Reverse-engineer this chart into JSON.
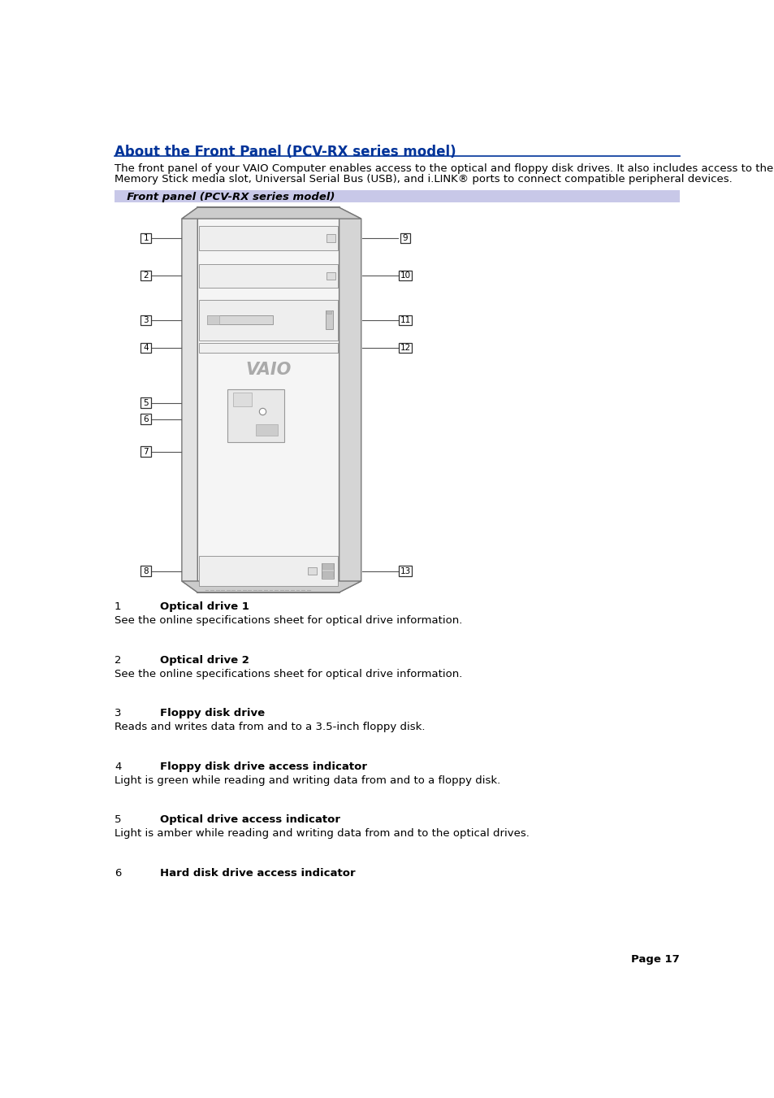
{
  "title": "About the Front Panel (PCV-RX series model)",
  "title_color": "#003399",
  "bg_color": "#ffffff",
  "intro_line1": "The front panel of your VAIO Computer enables access to the optical and floppy disk drives. It also includes access to the",
  "intro_line2": "Memory Stick media slot, Universal Serial Bus (USB), and i.LINK® ports to connect compatible peripheral devices.",
  "caption_text": "  Front panel (PCV-RX series model)",
  "caption_bg": "#c8c8e8",
  "items": [
    {
      "num": "1",
      "label": "Optical drive 1",
      "desc": "See the online specifications sheet for optical drive information."
    },
    {
      "num": "2",
      "label": "Optical drive 2",
      "desc": "See the online specifications sheet for optical drive information."
    },
    {
      "num": "3",
      "label": "Floppy disk drive",
      "desc": "Reads and writes data from and to a 3.5-inch floppy disk."
    },
    {
      "num": "4",
      "label": "Floppy disk drive access indicator",
      "desc": "Light is green while reading and writing data from and to a floppy disk."
    },
    {
      "num": "5",
      "label": "Optical drive access indicator",
      "desc": "Light is amber while reading and writing data from and to the optical drives."
    },
    {
      "num": "6",
      "label": "Hard disk drive access indicator",
      "desc": ""
    }
  ],
  "page_num": "Page 17",
  "main_font_size": 9.5,
  "title_font_size": 12
}
